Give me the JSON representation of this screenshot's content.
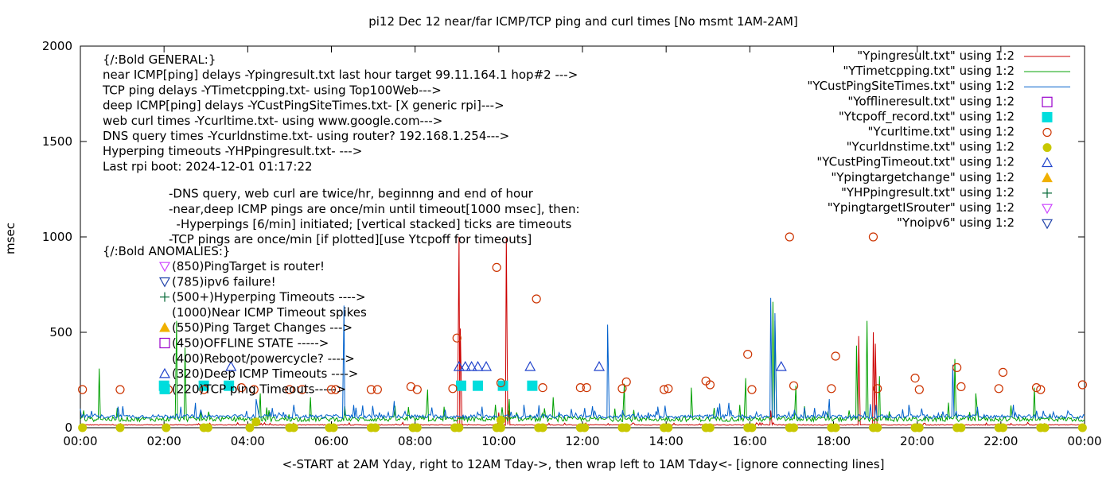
{
  "chart_data": {
    "type": "line",
    "title": "pi12 Dec 12  near/far ICMP/TCP ping and curl times [No msmt 1AM-2AM]",
    "xlabel": "<-START at 2AM Yday, right to 12AM Tday->, then wrap left to 1AM Tday<- [ignore connecting lines]",
    "ylabel": "msec",
    "xlim": [
      0,
      24
    ],
    "ylim": [
      0,
      2000
    ],
    "x_ticks": [
      "00:00",
      "02:00",
      "04:00",
      "06:00",
      "08:00",
      "10:00",
      "12:00",
      "14:00",
      "16:00",
      "18:00",
      "20:00",
      "22:00",
      "00:00"
    ],
    "y_ticks": [
      0,
      500,
      1000,
      1500,
      2000
    ],
    "grid": false,
    "legend_position": "top-right",
    "series": [
      {
        "name": "\"Ypingresult.txt\" using 1:2",
        "style": "line",
        "color": "#cc0000",
        "baseline": 14,
        "jitter": 4,
        "spikes": [
          [
            9.05,
            1000
          ],
          [
            9.08,
            520
          ],
          [
            10.0,
            80
          ],
          [
            10.18,
            1000
          ],
          [
            10.25,
            90
          ],
          [
            16.5,
            90
          ],
          [
            18.6,
            480
          ],
          [
            18.95,
            500
          ],
          [
            19.0,
            440
          ]
        ]
      },
      {
        "name": "\"YTimetcpping.txt\" using 1:2",
        "style": "line",
        "color": "#00a000",
        "baseline": 40,
        "jitter": 25,
        "spikes": [
          [
            0.45,
            310
          ],
          [
            2.3,
            560
          ],
          [
            2.5,
            420
          ],
          [
            4.3,
            180
          ],
          [
            5.5,
            160
          ],
          [
            8.3,
            200
          ],
          [
            10.25,
            150
          ],
          [
            11.3,
            160
          ],
          [
            13.0,
            230
          ],
          [
            14.6,
            210
          ],
          [
            15.9,
            260
          ],
          [
            16.55,
            660
          ],
          [
            16.6,
            560
          ],
          [
            17.1,
            220
          ],
          [
            18.55,
            430
          ],
          [
            18.8,
            560
          ],
          [
            19.1,
            270
          ],
          [
            20.9,
            360
          ],
          [
            21.4,
            180
          ],
          [
            22.8,
            210
          ]
        ]
      },
      {
        "name": "\"YCustPingSiteTimes.txt\" using 1:2",
        "style": "line",
        "color": "#0060cc",
        "baseline": 55,
        "jitter": 20,
        "spikes": [
          [
            0.9,
            110
          ],
          [
            2.75,
            130
          ],
          [
            4.2,
            150
          ],
          [
            5.1,
            120
          ],
          [
            6.3,
            640
          ],
          [
            7.5,
            140
          ],
          [
            9.6,
            110
          ],
          [
            10.6,
            120
          ],
          [
            12.6,
            540
          ],
          [
            13.8,
            110
          ],
          [
            15.5,
            130
          ],
          [
            16.5,
            680
          ],
          [
            16.6,
            600
          ],
          [
            17.9,
            150
          ],
          [
            19.8,
            120
          ],
          [
            20.85,
            330
          ],
          [
            22.3,
            120
          ]
        ]
      },
      {
        "name": "\"Yofflineresult.txt\" using 1:2",
        "style": "marker",
        "marker": "square-open",
        "color": "#9900cc",
        "points": []
      },
      {
        "name": "\"Ytcpoff_record.txt\" using 1:2",
        "style": "marker",
        "marker": "square-filled",
        "color": "#00dddd",
        "points": [
          [
            2.0,
            220
          ],
          [
            2.95,
            220
          ],
          [
            3.55,
            220
          ],
          [
            9.1,
            220
          ],
          [
            9.5,
            220
          ],
          [
            10.1,
            220
          ],
          [
            10.8,
            220
          ]
        ]
      },
      {
        "name": "\"Ycurltime.txt\" using 1:2",
        "style": "marker",
        "marker": "circle-open",
        "color": "#cc3300",
        "points": [
          [
            0.05,
            200
          ],
          [
            0.95,
            200
          ],
          [
            2.1,
            200
          ],
          [
            2.95,
            200
          ],
          [
            3.85,
            210
          ],
          [
            4.15,
            200
          ],
          [
            5.0,
            200
          ],
          [
            5.3,
            200
          ],
          [
            6.0,
            200
          ],
          [
            6.1,
            200
          ],
          [
            6.95,
            200
          ],
          [
            7.1,
            200
          ],
          [
            7.9,
            215
          ],
          [
            8.05,
            200
          ],
          [
            8.9,
            205
          ],
          [
            9.0,
            470
          ],
          [
            9.95,
            840
          ],
          [
            10.05,
            235
          ],
          [
            10.9,
            675
          ],
          [
            11.05,
            210
          ],
          [
            11.95,
            210
          ],
          [
            12.1,
            210
          ],
          [
            12.95,
            205
          ],
          [
            13.05,
            240
          ],
          [
            13.95,
            200
          ],
          [
            14.05,
            205
          ],
          [
            14.95,
            245
          ],
          [
            15.05,
            225
          ],
          [
            15.95,
            385
          ],
          [
            16.05,
            200
          ],
          [
            16.95,
            1000
          ],
          [
            17.05,
            220
          ],
          [
            17.95,
            205
          ],
          [
            18.05,
            375
          ],
          [
            18.95,
            1000
          ],
          [
            19.05,
            205
          ],
          [
            19.95,
            260
          ],
          [
            20.05,
            200
          ],
          [
            20.95,
            315
          ],
          [
            21.05,
            215
          ],
          [
            21.95,
            205
          ],
          [
            22.05,
            290
          ],
          [
            22.85,
            210
          ],
          [
            22.95,
            200
          ],
          [
            23.95,
            225
          ]
        ]
      },
      {
        "name": "\"Ycurldnstime.txt\" using 1:2",
        "style": "marker",
        "marker": "circle-filled",
        "color": "#c8c800",
        "points": [
          [
            0.05,
            0
          ],
          [
            0.95,
            0
          ],
          [
            2.05,
            0
          ],
          [
            2.95,
            0
          ],
          [
            3.05,
            0
          ],
          [
            4.05,
            0
          ],
          [
            4.2,
            30
          ],
          [
            5.0,
            0
          ],
          [
            5.1,
            0
          ],
          [
            5.95,
            0
          ],
          [
            6.05,
            0
          ],
          [
            6.95,
            0
          ],
          [
            7.05,
            0
          ],
          [
            7.95,
            0
          ],
          [
            8.05,
            0
          ],
          [
            8.95,
            0
          ],
          [
            9.05,
            0
          ],
          [
            9.95,
            0
          ],
          [
            10.05,
            0
          ],
          [
            10.05,
            40
          ],
          [
            10.95,
            0
          ],
          [
            11.05,
            0
          ],
          [
            11.95,
            0
          ],
          [
            12.05,
            0
          ],
          [
            12.95,
            0
          ],
          [
            13.05,
            0
          ],
          [
            13.95,
            0
          ],
          [
            14.05,
            0
          ],
          [
            14.95,
            0
          ],
          [
            15.05,
            0
          ],
          [
            15.95,
            0
          ],
          [
            16.05,
            0
          ],
          [
            16.95,
            0
          ],
          [
            17.05,
            0
          ],
          [
            17.95,
            0
          ],
          [
            18.05,
            0
          ],
          [
            18.95,
            0
          ],
          [
            19.05,
            0
          ],
          [
            19.95,
            0
          ],
          [
            20.05,
            0
          ],
          [
            20.95,
            0
          ],
          [
            21.05,
            0
          ],
          [
            21.95,
            0
          ],
          [
            22.05,
            0
          ],
          [
            22.95,
            0
          ],
          [
            23.05,
            0
          ],
          [
            23.95,
            0
          ]
        ]
      },
      {
        "name": "\"YCustPingTimeout.txt\" using 1:2",
        "style": "marker",
        "marker": "triangle-up-open",
        "color": "#2244cc",
        "points": [
          [
            3.6,
            320
          ],
          [
            9.05,
            320
          ],
          [
            9.2,
            320
          ],
          [
            9.35,
            320
          ],
          [
            9.5,
            320
          ],
          [
            9.7,
            320
          ],
          [
            10.75,
            320
          ],
          [
            12.4,
            320
          ],
          [
            16.75,
            320
          ]
        ]
      },
      {
        "name": "\"Ypingtargetchange\" using 1:2",
        "style": "marker",
        "marker": "triangle-up-filled",
        "color": "#f0b000",
        "points": []
      },
      {
        "name": "\"YHPpingresult.txt\" using 1:2",
        "style": "marker",
        "marker": "plus",
        "color": "#006633",
        "points": []
      },
      {
        "name": "\"YpingtargetISrouter\" using 1:2",
        "style": "marker",
        "marker": "triangle-down-open",
        "color": "#cc44ff",
        "points": []
      },
      {
        "name": "\"Ynoipv6\" using 1:2",
        "style": "marker",
        "marker": "triangle-down-open",
        "color": "#2244aa",
        "points": []
      }
    ],
    "annotations": {
      "general_lines": [
        "{/:Bold GENERAL:}",
        "near ICMP[ping] delays -Ypingresult.txt last hour target 99.11.164.1 hop#2 --->",
        "TCP ping delays -YTimetcpping.txt- using Top100Web--->",
        "deep ICMP[ping] delays -YCustPingSiteTimes.txt- [X generic rpi]--->",
        "web curl times -Ycurltime.txt- using www.google.com--->",
        "DNS query times -Ycurldnstime.txt- using router? 192.168.1.254--->",
        "Hyperping timeouts -YHPpingresult.txt- --->",
        "Last rpi boot: 2024-12-01 01:17:22"
      ],
      "note_lines": [
        "-DNS query, web curl are twice/hr, beginnng and end of hour",
        "-near,deep ICMP pings are once/min until timeout[1000 msec], then:",
        "  -Hyperpings [6/min] initiated; [vertical stacked] ticks are timeouts",
        "-TCP pings are once/min [if plotted][use Ytcpoff for timeouts]"
      ],
      "anomalies_title": "{/:Bold ANOMALIES:}",
      "anomaly_lines": [
        {
          "marker": "triangle-down-open",
          "color": "#cc44ff",
          "text": "(850)PingTarget is router!"
        },
        {
          "marker": "triangle-down-open",
          "color": "#2244aa",
          "text": "(785)ipv6 failure!"
        },
        {
          "marker": "plus",
          "color": "#006633",
          "text": "(500+)Hyperping Timeouts ---->"
        },
        {
          "marker": "",
          "color": "",
          "text": "(1000)Near ICMP Timeout spikes"
        },
        {
          "marker": "triangle-up-filled",
          "color": "#f0b000",
          "text": "(550)Ping Target Changes --->"
        },
        {
          "marker": "square-open",
          "color": "#9900cc",
          "text": "(450)OFFLINE STATE ----->"
        },
        {
          "marker": "",
          "color": "",
          "text": "(400)Reboot/powercycle? ---->"
        },
        {
          "marker": "triangle-up-open",
          "color": "#2244cc",
          "text": "(320)Deep ICMP Timeouts ---->"
        },
        {
          "marker": "square-filled",
          "color": "#00dddd",
          "text": "(220)TCP ping Timeouts----->"
        }
      ]
    }
  }
}
